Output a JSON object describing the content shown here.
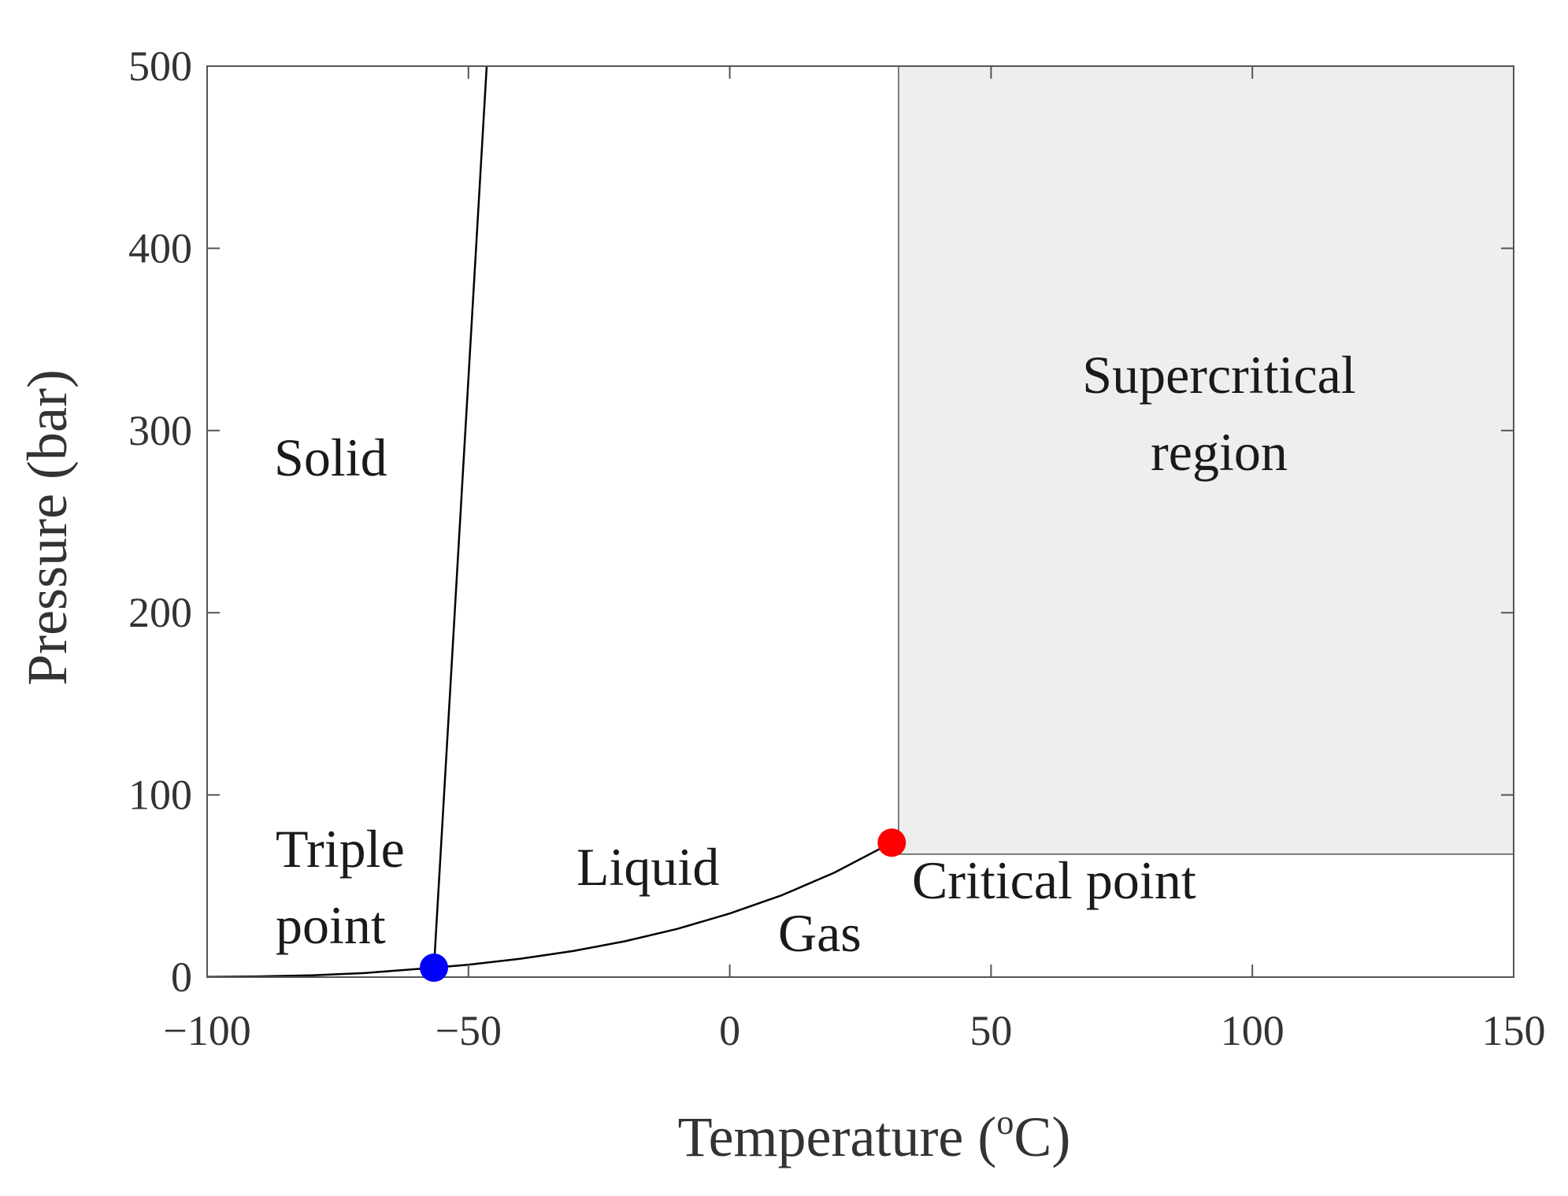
{
  "chart_data": {
    "type": "line",
    "xlabel": "Temperature (",
    "xlabel_sup": "o",
    "xlabel_unit": "C)",
    "ylabel": "Pressure (bar)",
    "xlim": [
      -100,
      150
    ],
    "ylim": [
      0,
      500
    ],
    "x_ticks": [
      -100,
      -50,
      0,
      50,
      100,
      150
    ],
    "x_tick_labels": [
      "−100",
      "−50",
      "0",
      "50",
      "100",
      "150"
    ],
    "y_ticks": [
      0,
      100,
      200,
      300,
      400,
      500
    ],
    "y_tick_labels": [
      "0",
      "100",
      "200",
      "300",
      "400",
      "500"
    ],
    "grid": false,
    "series": [
      {
        "role": "melting-curve",
        "color": "#000000",
        "x": [
          -56.6,
          -46.5
        ],
        "y": [
          5.2,
          500
        ]
      },
      {
        "role": "vapor-pressure-curve",
        "color": "#000000",
        "x": [
          -100,
          -90,
          -80,
          -70,
          -56.6,
          -50,
          -40,
          -30,
          -20,
          -10,
          0,
          10,
          20,
          31.0
        ],
        "y": [
          0.1,
          0.4,
          1.0,
          2.2,
          5.2,
          6.8,
          10.1,
          14.3,
          19.7,
          26.5,
          34.9,
          45.0,
          57.3,
          73.8
        ]
      }
    ],
    "points": [
      {
        "name": "triple-point",
        "x": -56.6,
        "y": 5.2,
        "color": "#0000ff"
      },
      {
        "name": "critical-point",
        "x": 31.0,
        "y": 73.8,
        "color": "#ff0000"
      }
    ],
    "shaded_region": {
      "x": [
        32.3,
        150
      ],
      "y": [
        67.5,
        500
      ],
      "color": "#eeeeee"
    },
    "annotations": {
      "solid": "Solid",
      "supercritical_line1": "Supercritical",
      "supercritical_line2": "region",
      "triple_line1": "Triple",
      "triple_line2": "point",
      "liquid": "Liquid",
      "gas": "Gas",
      "critical": "Critical point"
    }
  }
}
